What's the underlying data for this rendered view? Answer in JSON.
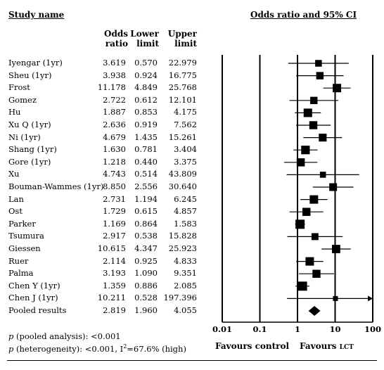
{
  "chart_data": {
    "type": "forest",
    "title": "Odds ratio and 95% CI",
    "columns": {
      "study": "Study name",
      "odds_ratio": "Odds ratio",
      "lower": "Lower limit",
      "upper": "Upper limit"
    },
    "odds_ratio_label": [
      "Odds",
      "ratio"
    ],
    "lower_label": [
      "Lower",
      "limit"
    ],
    "upper_label": [
      "Upper",
      "limit"
    ],
    "x_scale": "log",
    "xlim": [
      0.01,
      100
    ],
    "x_ticks": [
      0.01,
      0.1,
      1,
      10,
      100
    ],
    "x_tick_labels": [
      "0.01",
      "0.1",
      "1",
      "10",
      "100"
    ],
    "favours_left": "Favours control",
    "favours_right_prefix": "Favours",
    "favours_right_sub": "LCT",
    "studies": [
      {
        "name": "Iyengar (1yr)",
        "or": "3.619",
        "lower": "0.570",
        "upper": "22.979",
        "or_v": 3.619,
        "lo_v": 0.57,
        "hi_v": 22.979,
        "arrow": false
      },
      {
        "name": "Sheu (1yr)",
        "or": "3.938",
        "lower": "0.924",
        "upper": "16.775",
        "or_v": 3.938,
        "lo_v": 0.924,
        "hi_v": 16.775,
        "arrow": false
      },
      {
        "name": "Frost",
        "or": "11.178",
        "lower": "4.849",
        "upper": "25.768",
        "or_v": 11.178,
        "lo_v": 4.849,
        "hi_v": 25.768,
        "arrow": false
      },
      {
        "name": "Gomez",
        "or": "2.722",
        "lower": "0.612",
        "upper": "12.101",
        "or_v": 2.722,
        "lo_v": 0.612,
        "hi_v": 12.101,
        "arrow": false
      },
      {
        "name": "Hu",
        "or": "1.887",
        "lower": "0.853",
        "upper": "4.175",
        "or_v": 1.887,
        "lo_v": 0.853,
        "hi_v": 4.175,
        "arrow": false
      },
      {
        "name": "Xu Q (1yr)",
        "or": "2.636",
        "lower": "0.919",
        "upper": "7.562",
        "or_v": 2.636,
        "lo_v": 0.919,
        "hi_v": 7.562,
        "arrow": false
      },
      {
        "name": "Ni (1yr)",
        "or": "4.679",
        "lower": "1.435",
        "upper": "15.261",
        "or_v": 4.679,
        "lo_v": 1.435,
        "hi_v": 15.261,
        "arrow": false
      },
      {
        "name": "Shang (1yr)",
        "or": "1.630",
        "lower": "0.781",
        "upper": "3.404",
        "or_v": 1.63,
        "lo_v": 0.781,
        "hi_v": 3.404,
        "arrow": false
      },
      {
        "name": "Gore (1yr)",
        "or": "1.218",
        "lower": "0.440",
        "upper": "3.375",
        "or_v": 1.218,
        "lo_v": 0.44,
        "hi_v": 3.375,
        "arrow": false
      },
      {
        "name": "Xu",
        "or": "4.743",
        "lower": "0.514",
        "upper": "43.809",
        "or_v": 4.743,
        "lo_v": 0.514,
        "hi_v": 43.809,
        "arrow": false
      },
      {
        "name": "Bouman-Wammes (1yr)",
        "or": "8.850",
        "lower": "2.556",
        "upper": "30.640",
        "or_v": 8.85,
        "lo_v": 2.556,
        "hi_v": 30.64,
        "arrow": false
      },
      {
        "name": "Lan",
        "or": "2.731",
        "lower": "1.194",
        "upper": "6.245",
        "or_v": 2.731,
        "lo_v": 1.194,
        "hi_v": 6.245,
        "arrow": false
      },
      {
        "name": "Ost",
        "or": "1.729",
        "lower": "0.615",
        "upper": "4.857",
        "or_v": 1.729,
        "lo_v": 0.615,
        "hi_v": 4.857,
        "arrow": false
      },
      {
        "name": "Parker",
        "or": "1.169",
        "lower": "0.864",
        "upper": "1.583",
        "or_v": 1.169,
        "lo_v": 0.864,
        "hi_v": 1.583,
        "arrow": false
      },
      {
        "name": "Tsumura",
        "or": "2.917",
        "lower": "0.538",
        "upper": "15.828",
        "or_v": 2.917,
        "lo_v": 0.538,
        "hi_v": 15.828,
        "arrow": false
      },
      {
        "name": "Giessen",
        "or": "10.615",
        "lower": "4.347",
        "upper": "25.923",
        "or_v": 10.615,
        "lo_v": 4.347,
        "hi_v": 25.923,
        "arrow": false
      },
      {
        "name": "Ruer",
        "or": "2.114",
        "lower": "0.925",
        "upper": "4.833",
        "or_v": 2.114,
        "lo_v": 0.925,
        "hi_v": 4.833,
        "arrow": false
      },
      {
        "name": "Palma",
        "or": "3.193",
        "lower": "1.090",
        "upper": "9.351",
        "or_v": 3.193,
        "lo_v": 1.09,
        "hi_v": 9.351,
        "arrow": false
      },
      {
        "name": "Chen Y (1yr)",
        "or": "1.359",
        "lower": "0.886",
        "upper": "2.085",
        "or_v": 1.359,
        "lo_v": 0.886,
        "hi_v": 2.085,
        "arrow": false
      },
      {
        "name": "Chen J (1yr)",
        "or": "10.211",
        "lower": "0.528",
        "upper": "197.396",
        "or_v": 10.211,
        "lo_v": 0.528,
        "hi_v": 197.396,
        "arrow": true
      }
    ],
    "pooled": {
      "name": "Pooled results",
      "or": "2.819",
      "lower": "1.960",
      "upper": "4.055",
      "or_v": 2.819,
      "lo_v": 1.96,
      "hi_v": 4.055
    },
    "footnote_pooled_prefix": "p",
    "footnote_pooled_text": " (pooled analysis): <0.001",
    "footnote_het_prefix": "p",
    "footnote_het_text": " (heterogeneity): <0.001, I",
    "footnote_het_sup": "2",
    "footnote_het_tail": "=67.6% (high)"
  }
}
